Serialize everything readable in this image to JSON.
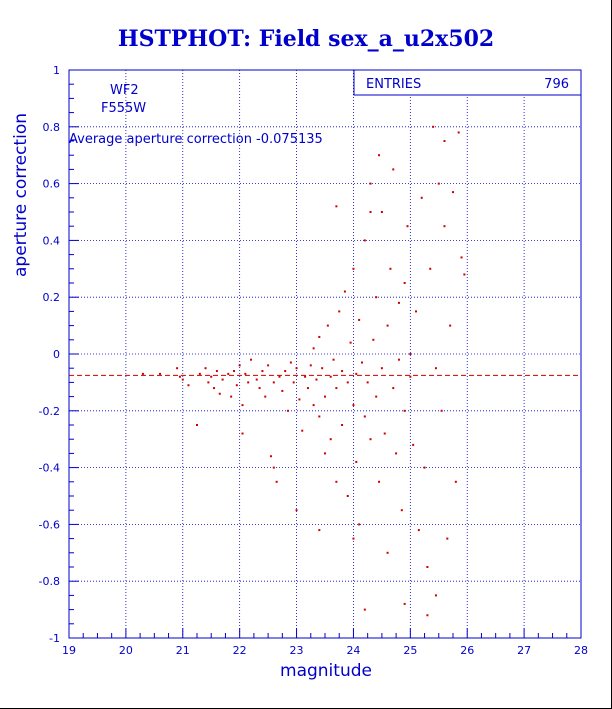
{
  "chart_data": {
    "type": "scatter",
    "title": "HSTPHOT: Field sex_a_u2x502",
    "xlabel": "magnitude",
    "ylabel": "aperture correction",
    "xlim": [
      19,
      28
    ],
    "ylim": [
      -1,
      1
    ],
    "x_ticks": [
      "19",
      "20",
      "21",
      "22",
      "23",
      "24",
      "25",
      "26",
      "27",
      "28"
    ],
    "y_ticks": [
      "-1",
      "-0.8",
      "-0.6",
      "-0.4",
      "-0.2",
      "0",
      "0.2",
      "0.4",
      "0.6",
      "0.8",
      "1"
    ],
    "x_tick_values": [
      19,
      20,
      21,
      22,
      23,
      24,
      25,
      26,
      27,
      28
    ],
    "y_tick_values": [
      -1,
      -0.8,
      -0.6,
      -0.4,
      -0.2,
      0,
      0.2,
      0.4,
      0.6,
      0.8,
      1
    ],
    "grid": true,
    "marker_color": "#cc0000",
    "reference_line": {
      "y": -0.075135,
      "style": "dashed",
      "color": "#cc0000"
    },
    "annotations": {
      "camera": "WF2",
      "filter": "F555W",
      "average": "Average aperture correction -0.075135"
    },
    "stats_box": {
      "label": "ENTRIES",
      "value": "796"
    },
    "points": [
      [
        20.3,
        -0.07
      ],
      [
        20.6,
        -0.07
      ],
      [
        20.9,
        -0.05
      ],
      [
        20.95,
        -0.08
      ],
      [
        21.0,
        -0.09
      ],
      [
        21.1,
        -0.11
      ],
      [
        21.25,
        -0.25
      ],
      [
        21.3,
        -0.07
      ],
      [
        21.4,
        -0.05
      ],
      [
        21.45,
        -0.1
      ],
      [
        21.5,
        -0.08
      ],
      [
        21.55,
        -0.12
      ],
      [
        21.6,
        -0.06
      ],
      [
        21.65,
        -0.14
      ],
      [
        21.7,
        -0.09
      ],
      [
        21.8,
        -0.07
      ],
      [
        21.85,
        -0.15
      ],
      [
        21.9,
        -0.06
      ],
      [
        21.95,
        -0.11
      ],
      [
        22.0,
        -0.04
      ],
      [
        22.05,
        -0.18
      ],
      [
        22.05,
        -0.28
      ],
      [
        22.1,
        -0.07
      ],
      [
        22.15,
        -0.1
      ],
      [
        22.2,
        -0.02
      ],
      [
        22.3,
        -0.09
      ],
      [
        22.35,
        -0.12
      ],
      [
        22.4,
        -0.06
      ],
      [
        22.45,
        -0.15
      ],
      [
        22.5,
        -0.04
      ],
      [
        22.55,
        -0.36
      ],
      [
        22.6,
        -0.1
      ],
      [
        22.65,
        -0.45
      ],
      [
        22.7,
        -0.08
      ],
      [
        22.75,
        -0.13
      ],
      [
        22.8,
        -0.06
      ],
      [
        22.85,
        -0.2
      ],
      [
        22.9,
        -0.03
      ],
      [
        22.95,
        -0.1
      ],
      [
        23.0,
        -0.05
      ],
      [
        23.05,
        -0.16
      ],
      [
        23.1,
        -0.27
      ],
      [
        23.15,
        -0.08
      ],
      [
        23.2,
        -0.12
      ],
      [
        23.25,
        -0.04
      ],
      [
        23.3,
        -0.18
      ],
      [
        23.3,
        0.02
      ],
      [
        23.35,
        -0.09
      ],
      [
        23.4,
        -0.22
      ],
      [
        23.4,
        0.06
      ],
      [
        23.45,
        -0.05
      ],
      [
        23.5,
        -0.15
      ],
      [
        23.5,
        -0.35
      ],
      [
        23.55,
        0.1
      ],
      [
        23.6,
        -0.08
      ],
      [
        23.6,
        -0.3
      ],
      [
        23.65,
        -0.02
      ],
      [
        23.7,
        -0.12
      ],
      [
        23.7,
        -0.45
      ],
      [
        23.75,
        0.15
      ],
      [
        23.8,
        -0.06
      ],
      [
        23.8,
        -0.25
      ],
      [
        23.85,
        0.22
      ],
      [
        23.9,
        -0.1
      ],
      [
        23.9,
        -0.5
      ],
      [
        23.95,
        0.04
      ],
      [
        24.0,
        -0.18
      ],
      [
        24.0,
        0.3
      ],
      [
        24.05,
        -0.07
      ],
      [
        24.05,
        -0.38
      ],
      [
        24.1,
        0.12
      ],
      [
        24.1,
        -0.6
      ],
      [
        24.15,
        -0.03
      ],
      [
        24.2,
        -0.22
      ],
      [
        24.2,
        0.4
      ],
      [
        24.25,
        -0.1
      ],
      [
        24.3,
        0.6
      ],
      [
        24.3,
        -0.3
      ],
      [
        24.35,
        0.05
      ],
      [
        24.4,
        -0.15
      ],
      [
        24.4,
        0.2
      ],
      [
        24.45,
        -0.45
      ],
      [
        24.5,
        0.5
      ],
      [
        24.5,
        -0.05
      ],
      [
        24.55,
        -0.28
      ],
      [
        24.6,
        0.1
      ],
      [
        24.6,
        -0.7
      ],
      [
        24.65,
        0.3
      ],
      [
        24.7,
        -0.12
      ],
      [
        24.7,
        0.65
      ],
      [
        24.75,
        -0.35
      ],
      [
        24.8,
        0.18
      ],
      [
        24.8,
        -0.02
      ],
      [
        24.85,
        -0.55
      ],
      [
        24.9,
        0.25
      ],
      [
        24.9,
        -0.2
      ],
      [
        24.95,
        0.45
      ],
      [
        25.0,
        -0.08
      ],
      [
        25.0,
        0.0
      ],
      [
        25.05,
        -0.32
      ],
      [
        25.1,
        0.15
      ],
      [
        25.15,
        -0.62
      ],
      [
        25.2,
        0.55
      ],
      [
        25.25,
        -0.4
      ],
      [
        25.3,
        -0.75
      ],
      [
        25.35,
        0.3
      ],
      [
        25.4,
        0.8
      ],
      [
        25.45,
        -0.05
      ],
      [
        25.5,
        0.6
      ],
      [
        25.55,
        -0.2
      ],
      [
        25.6,
        0.45
      ],
      [
        25.65,
        -0.65
      ],
      [
        25.7,
        0.1
      ],
      [
        25.75,
        0.57
      ],
      [
        25.8,
        -0.45
      ],
      [
        25.85,
        0.78
      ],
      [
        25.9,
        0.34
      ],
      [
        25.95,
        0.28
      ],
      [
        24.2,
        -0.9
      ],
      [
        25.3,
        -0.92
      ],
      [
        23.0,
        -0.55
      ],
      [
        23.4,
        -0.62
      ],
      [
        22.6,
        -0.4
      ],
      [
        24.9,
        -0.88
      ],
      [
        25.45,
        -0.85
      ],
      [
        23.7,
        0.52
      ],
      [
        24.45,
        0.7
      ],
      [
        25.6,
        0.75
      ],
      [
        24.3,
        0.5
      ],
      [
        24.0,
        -0.65
      ]
    ]
  }
}
